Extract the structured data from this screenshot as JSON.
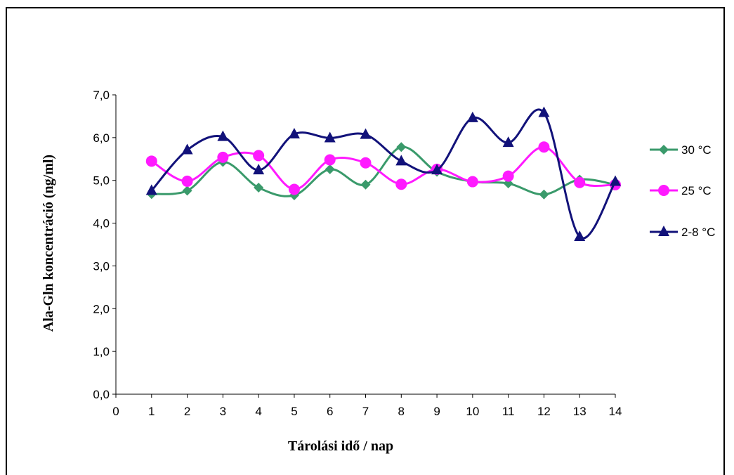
{
  "chart_data": {
    "type": "line",
    "title": "",
    "xlabel": "Tárolási idő / nap",
    "ylabel": "Ala-Gln koncentráció (ng/ml)",
    "categories": [
      "0",
      "1",
      "2",
      "3",
      "4",
      "5",
      "6",
      "7",
      "8",
      "9",
      "10",
      "11",
      "12",
      "13",
      "14"
    ],
    "x": [
      1,
      2,
      3,
      4,
      5,
      6,
      7,
      8,
      9,
      10,
      11,
      12,
      13,
      14
    ],
    "ylim": [
      0,
      7
    ],
    "yticks": [
      "0,0",
      "1,0",
      "2,0",
      "3,0",
      "4,0",
      "5,0",
      "6,0",
      "7,0"
    ],
    "yticks_values": [
      0,
      1,
      2,
      3,
      4,
      5,
      6,
      7
    ],
    "grid": false,
    "legend_position": "right",
    "smooth": true,
    "series": [
      {
        "name": "30 °C",
        "color": "#3A9A6B",
        "marker": "diamond",
        "values": [
          4.68,
          4.76,
          5.43,
          4.83,
          4.65,
          5.26,
          4.9,
          5.78,
          5.2,
          4.97,
          4.93,
          4.67,
          5.02,
          4.9
        ]
      },
      {
        "name": "25 °C",
        "color": "#FF1AFF",
        "marker": "circle",
        "values": [
          5.45,
          4.98,
          5.54,
          5.58,
          4.79,
          5.48,
          5.41,
          4.91,
          5.26,
          4.97,
          5.1,
          5.78,
          4.95,
          4.9
        ]
      },
      {
        "name": "2-8 °C",
        "color": "#12127A",
        "marker": "triangle",
        "values": [
          4.76,
          5.71,
          6.02,
          5.24,
          6.08,
          5.99,
          6.07,
          5.45,
          5.24,
          6.46,
          5.88,
          6.58,
          3.68,
          4.97
        ]
      }
    ]
  }
}
